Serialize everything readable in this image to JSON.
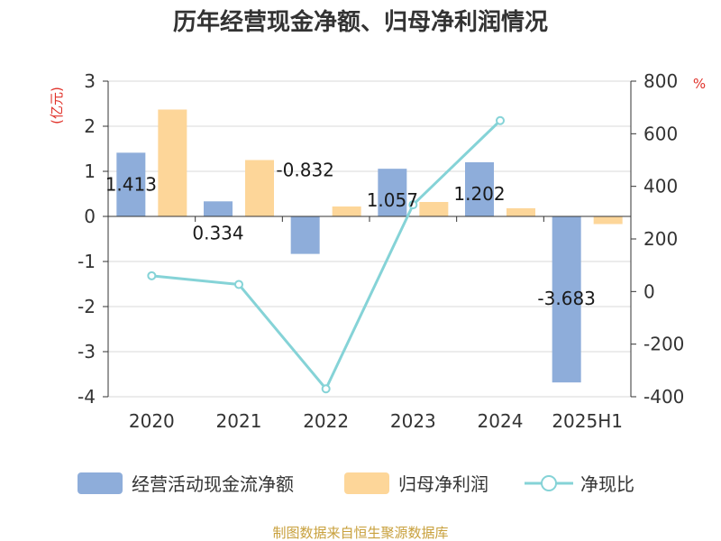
{
  "chart_data": {
    "type": "bar+line",
    "title": "历年经营现金净额、归母净利润情况",
    "categories": [
      "2020",
      "2021",
      "2022",
      "2023",
      "2024",
      "2025H1"
    ],
    "series": [
      {
        "name": "经营活动现金流净额",
        "type": "bar",
        "axis": "left",
        "values": [
          1.413,
          0.334,
          -0.832,
          1.057,
          1.202,
          -3.683
        ],
        "data_labels": [
          "1.413",
          "0.334",
          "-0.832",
          "1.057",
          "1.202",
          "-3.683"
        ]
      },
      {
        "name": "归母净利润",
        "type": "bar",
        "axis": "left",
        "values": [
          2.37,
          1.25,
          0.22,
          0.32,
          0.18,
          -0.17
        ]
      },
      {
        "name": "净现比",
        "type": "line",
        "axis": "right",
        "values": [
          60,
          27,
          -370,
          330,
          650,
          null
        ]
      }
    ],
    "left_axis": {
      "unit": "(亿元)",
      "ylim": [
        -4,
        3
      ],
      "ticks": [
        3,
        2,
        1,
        0,
        -1,
        -2,
        -3,
        -4
      ],
      "tick_labels": [
        "3",
        "2",
        "1",
        "0",
        "-1",
        "-2",
        "-3",
        "-4"
      ]
    },
    "right_axis": {
      "unit": "%",
      "ylim": [
        -400,
        800
      ],
      "ticks": [
        800,
        600,
        400,
        200,
        0,
        -200,
        -400
      ],
      "tick_labels": [
        "800",
        "600",
        "400",
        "200",
        "0",
        "-200",
        "-400"
      ]
    },
    "grid": true,
    "legend_position": "bottom",
    "colors": {
      "cash_flow_bar": "#8EADDA",
      "net_profit_bar": "#FDD699",
      "ratio_line": "#85D3D7",
      "unit_text": "#E0322A",
      "source_text": "#C8A03C",
      "grid": "#D9D9D9",
      "axis": "#333333"
    }
  },
  "source": "制图数据来自恒生聚源数据库"
}
